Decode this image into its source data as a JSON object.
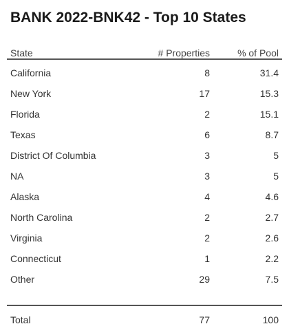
{
  "title": "BANK 2022-BNK42 - Top 10 States",
  "headers": {
    "state": "State",
    "properties": "# Properties",
    "pool": "% of Pool"
  },
  "rows": [
    {
      "state": "California",
      "properties": "8",
      "pool": "31.4"
    },
    {
      "state": "New York",
      "properties": "17",
      "pool": "15.3"
    },
    {
      "state": "Florida",
      "properties": "2",
      "pool": "15.1"
    },
    {
      "state": "Texas",
      "properties": "6",
      "pool": "8.7"
    },
    {
      "state": "District Of Columbia",
      "properties": "3",
      "pool": "5"
    },
    {
      "state": "NA",
      "properties": "3",
      "pool": "5"
    },
    {
      "state": "Alaska",
      "properties": "4",
      "pool": "4.6"
    },
    {
      "state": "North Carolina",
      "properties": "2",
      "pool": "2.7"
    },
    {
      "state": "Virginia",
      "properties": "2",
      "pool": "2.6"
    },
    {
      "state": "Connecticut",
      "properties": "1",
      "pool": "2.2"
    },
    {
      "state": "Other",
      "properties": "29",
      "pool": "7.5"
    }
  ],
  "total": {
    "label": "Total",
    "properties": "77",
    "pool": "100"
  }
}
